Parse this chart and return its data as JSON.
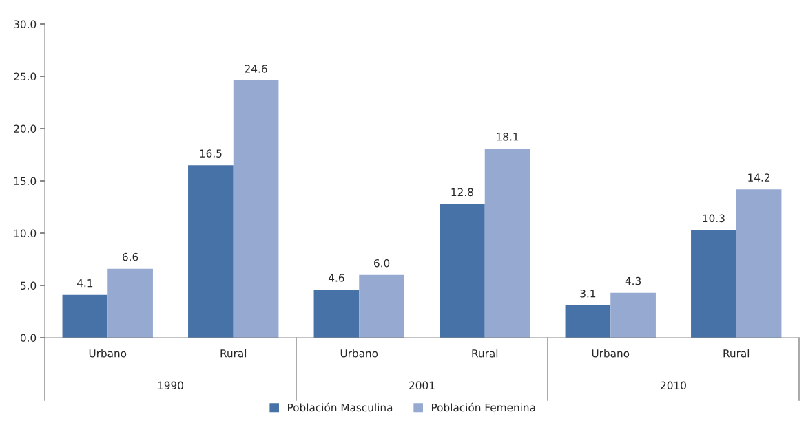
{
  "chart_data": {
    "type": "bar",
    "categories": [
      "Urbano",
      "Rural",
      "Urbano",
      "Rural",
      "Urbano",
      "Rural"
    ],
    "series": [
      {
        "name": "Población Masculina",
        "color": "#4672a7",
        "values": [
          4.1,
          16.5,
          4.6,
          12.8,
          3.1,
          10.3
        ],
        "value_labels": [
          "4.1",
          "16.5",
          "4.6",
          "12.8",
          "3.1",
          "10.3"
        ]
      },
      {
        "name": "Población Femenina",
        "color": "#95a9d1",
        "values": [
          6.6,
          24.6,
          6.0,
          18.1,
          4.3,
          14.2
        ],
        "value_labels": [
          "6.6",
          "24.6",
          "6.0",
          "18.1",
          "4.3",
          "14.2"
        ]
      }
    ],
    "annotations": [
      "1990",
      "2001",
      "2010"
    ],
    "ylim": [
      0,
      30
    ],
    "yticks": [
      {
        "value": 0,
        "label": "0.0"
      },
      {
        "value": 5,
        "label": "5.0"
      },
      {
        "value": 10,
        "label": "10.0"
      },
      {
        "value": 15,
        "label": "15.0"
      },
      {
        "value": 20,
        "label": "20.0"
      },
      {
        "value": 25,
        "label": "25.0"
      },
      {
        "value": 30,
        "label": "30.0"
      }
    ],
    "grid": false,
    "legend": "bottom"
  }
}
